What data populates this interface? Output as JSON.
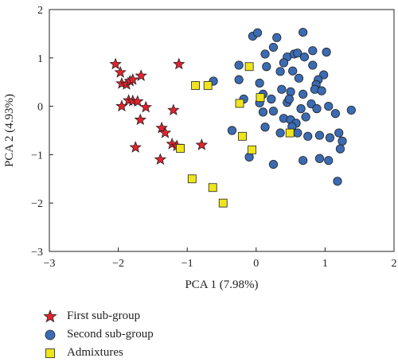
{
  "chart_data": {
    "type": "scatter",
    "title": "",
    "xlabel": "PCA 1 (7.98%)",
    "ylabel": "PCA 2 (4.93%)",
    "xlim": [
      -3,
      2
    ],
    "ylim": [
      -3,
      2
    ],
    "x_ticks": [
      "−3",
      "−2",
      "−1",
      "0",
      "1",
      "2"
    ],
    "y_ticks": [
      "−3",
      "−2",
      "−1",
      "0",
      "1",
      "2"
    ],
    "grid": false,
    "legend_position": "bottom-left (outside plot)",
    "series": [
      {
        "name": "First sub-group",
        "marker": "star",
        "color": "#e3232b",
        "points": [
          [
            -2.04,
            0.87
          ],
          [
            -1.97,
            0.7
          ],
          [
            -1.95,
            0.47
          ],
          [
            -1.88,
            0.45
          ],
          [
            -1.83,
            0.52
          ],
          [
            -1.79,
            0.55
          ],
          [
            -1.67,
            0.63
          ],
          [
            -1.12,
            0.87
          ],
          [
            -1.85,
            0.12
          ],
          [
            -1.95,
            0.0
          ],
          [
            -1.79,
            0.11
          ],
          [
            -1.72,
            0.1
          ],
          [
            -1.6,
            -0.02
          ],
          [
            -1.68,
            -0.28
          ],
          [
            -1.37,
            -0.45
          ],
          [
            -1.32,
            -0.55
          ],
          [
            -1.2,
            -0.08
          ],
          [
            -1.75,
            -0.85
          ],
          [
            -1.22,
            -0.78
          ],
          [
            -1.15,
            -0.82
          ],
          [
            -0.79,
            -0.8
          ],
          [
            -1.39,
            -1.1
          ]
        ]
      },
      {
        "name": "Second sub-group",
        "marker": "circle",
        "color": "#3b6bb2",
        "points": [
          [
            -0.05,
            1.45
          ],
          [
            0.02,
            1.52
          ],
          [
            0.3,
            1.42
          ],
          [
            0.68,
            1.53
          ],
          [
            0.25,
            1.22
          ],
          [
            0.13,
            1.08
          ],
          [
            0.45,
            1.02
          ],
          [
            0.55,
            1.08
          ],
          [
            0.6,
            1.1
          ],
          [
            0.7,
            1.02
          ],
          [
            0.82,
            1.15
          ],
          [
            1.02,
            1.12
          ],
          [
            -0.62,
            0.52
          ],
          [
            -0.25,
            0.85
          ],
          [
            0.15,
            0.82
          ],
          [
            0.4,
            0.9
          ],
          [
            0.53,
            0.73
          ],
          [
            0.82,
            0.85
          ],
          [
            0.98,
            0.65
          ],
          [
            -0.25,
            0.55
          ],
          [
            0.05,
            0.48
          ],
          [
            0.35,
            0.72
          ],
          [
            0.62,
            0.58
          ],
          [
            0.9,
            0.55
          ],
          [
            0.87,
            0.45
          ],
          [
            0.1,
            0.25
          ],
          [
            0.37,
            0.35
          ],
          [
            0.5,
            0.3
          ],
          [
            0.68,
            0.25
          ],
          [
            0.85,
            0.35
          ],
          [
            0.95,
            0.32
          ],
          [
            -0.18,
            0.15
          ],
          [
            0.05,
            0.07
          ],
          [
            0.22,
            0.15
          ],
          [
            0.45,
            0.08
          ],
          [
            0.48,
            0.15
          ],
          [
            0.65,
            -0.05
          ],
          [
            0.8,
            0.05
          ],
          [
            0.88,
            -0.05
          ],
          [
            1.05,
            0.0
          ],
          [
            0.1,
            -0.12
          ],
          [
            0.25,
            -0.1
          ],
          [
            0.4,
            -0.25
          ],
          [
            0.5,
            -0.28
          ],
          [
            0.58,
            -0.35
          ],
          [
            0.72,
            -0.22
          ],
          [
            1.15,
            -0.15
          ],
          [
            1.38,
            -0.08
          ],
          [
            0.13,
            -0.43
          ],
          [
            0.35,
            -0.55
          ],
          [
            0.52,
            -0.42
          ],
          [
            0.6,
            -0.55
          ],
          [
            0.75,
            -0.62
          ],
          [
            0.92,
            -0.6
          ],
          [
            1.07,
            -0.65
          ],
          [
            1.2,
            -0.55
          ],
          [
            1.25,
            -0.72
          ],
          [
            1.22,
            -0.88
          ],
          [
            -0.35,
            -0.5
          ],
          [
            -0.1,
            -1.05
          ],
          [
            0.25,
            -1.2
          ],
          [
            0.68,
            -1.12
          ],
          [
            0.92,
            -1.08
          ],
          [
            1.05,
            -1.12
          ],
          [
            1.18,
            -1.55
          ]
        ]
      },
      {
        "name": "Admixtures",
        "marker": "square",
        "color": "#f0e51c",
        "points": [
          [
            -0.88,
            0.43
          ],
          [
            -0.7,
            0.43
          ],
          [
            -0.1,
            0.82
          ],
          [
            -0.24,
            0.06
          ],
          [
            0.06,
            0.18
          ],
          [
            -0.2,
            -0.62
          ],
          [
            -0.06,
            -0.9
          ],
          [
            0.49,
            -0.55
          ],
          [
            -1.1,
            -0.87
          ],
          [
            -0.93,
            -1.5
          ],
          [
            -0.63,
            -1.68
          ],
          [
            -0.48,
            -2.0
          ]
        ]
      }
    ]
  }
}
